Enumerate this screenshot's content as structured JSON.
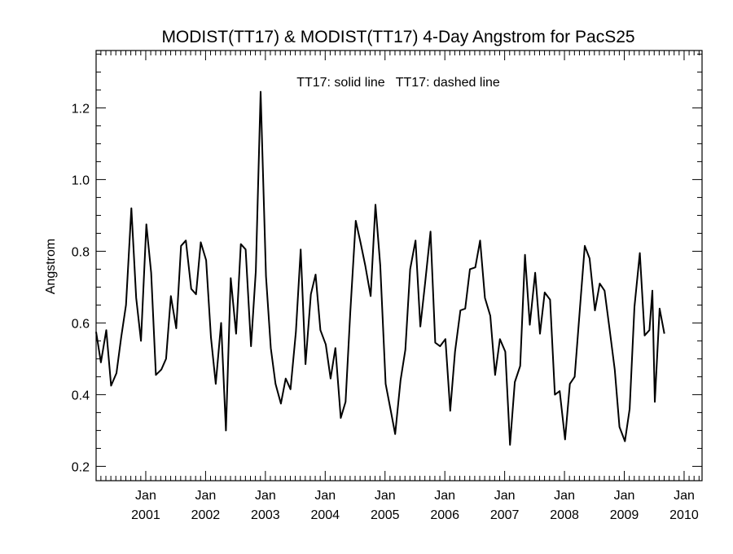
{
  "chart_data": {
    "type": "line",
    "title": "MODIST(TT17) & MODIST(TT17) 4-Day Angstrom for PacS25",
    "annotation": "TT17: solid line   TT17: dashed line",
    "ylabel": "Angstrom",
    "xlabel": "",
    "ylim": [
      0.16,
      1.36
    ],
    "xlim": [
      2000.17,
      2010.3
    ],
    "y_ticks": [
      {
        "value": 0.2,
        "label": "0.2"
      },
      {
        "value": 0.4,
        "label": "0.4"
      },
      {
        "value": 0.6,
        "label": "0.6"
      },
      {
        "value": 0.8,
        "label": "0.8"
      },
      {
        "value": 1.0,
        "label": "1.0"
      },
      {
        "value": 1.2,
        "label": "1.2"
      }
    ],
    "x_ticks": [
      {
        "value": 2001.0,
        "month": "Jan",
        "year": "2001"
      },
      {
        "value": 2002.0,
        "month": "Jan",
        "year": "2002"
      },
      {
        "value": 2003.0,
        "month": "Jan",
        "year": "2003"
      },
      {
        "value": 2004.0,
        "month": "Jan",
        "year": "2004"
      },
      {
        "value": 2005.0,
        "month": "Jan",
        "year": "2005"
      },
      {
        "value": 2006.0,
        "month": "Jan",
        "year": "2006"
      },
      {
        "value": 2007.0,
        "month": "Jan",
        "year": "2007"
      },
      {
        "value": 2008.0,
        "month": "Jan",
        "year": "2008"
      },
      {
        "value": 2009.0,
        "month": "Jan",
        "year": "2009"
      },
      {
        "value": 2010.0,
        "month": "Jan",
        "year": "2010"
      }
    ],
    "grid": false,
    "series": [
      {
        "style": "solid",
        "color": "#000000",
        "points": [
          [
            2000.17,
            0.575
          ],
          [
            2000.25,
            0.49
          ],
          [
            2000.34,
            0.58
          ],
          [
            2000.42,
            0.425
          ],
          [
            2000.51,
            0.46
          ],
          [
            2000.59,
            0.56
          ],
          [
            2000.67,
            0.65
          ],
          [
            2000.76,
            0.92
          ],
          [
            2000.84,
            0.67
          ],
          [
            2000.92,
            0.55
          ],
          [
            2001.01,
            0.875
          ],
          [
            2001.09,
            0.74
          ],
          [
            2001.17,
            0.455
          ],
          [
            2001.26,
            0.47
          ],
          [
            2001.34,
            0.5
          ],
          [
            2001.42,
            0.675
          ],
          [
            2001.51,
            0.585
          ],
          [
            2001.59,
            0.815
          ],
          [
            2001.67,
            0.83
          ],
          [
            2001.76,
            0.695
          ],
          [
            2001.84,
            0.68
          ],
          [
            2001.92,
            0.825
          ],
          [
            2002.01,
            0.775
          ],
          [
            2002.09,
            0.56
          ],
          [
            2002.17,
            0.43
          ],
          [
            2002.26,
            0.6
          ],
          [
            2002.34,
            0.3
          ],
          [
            2002.42,
            0.725
          ],
          [
            2002.51,
            0.57
          ],
          [
            2002.59,
            0.82
          ],
          [
            2002.67,
            0.805
          ],
          [
            2002.76,
            0.535
          ],
          [
            2002.84,
            0.745
          ],
          [
            2002.92,
            1.245
          ],
          [
            2003.01,
            0.73
          ],
          [
            2003.09,
            0.53
          ],
          [
            2003.17,
            0.43
          ],
          [
            2003.26,
            0.375
          ],
          [
            2003.34,
            0.445
          ],
          [
            2003.42,
            0.415
          ],
          [
            2003.51,
            0.575
          ],
          [
            2003.59,
            0.805
          ],
          [
            2003.67,
            0.485
          ],
          [
            2003.76,
            0.68
          ],
          [
            2003.84,
            0.735
          ],
          [
            2003.92,
            0.58
          ],
          [
            2004.01,
            0.54
          ],
          [
            2004.09,
            0.445
          ],
          [
            2004.17,
            0.53
          ],
          [
            2004.26,
            0.335
          ],
          [
            2004.34,
            0.38
          ],
          [
            2004.42,
            0.63
          ],
          [
            2004.51,
            0.885
          ],
          [
            2004.59,
            0.825
          ],
          [
            2004.67,
            0.76
          ],
          [
            2004.76,
            0.675
          ],
          [
            2004.84,
            0.93
          ],
          [
            2004.92,
            0.76
          ],
          [
            2005.01,
            0.43
          ],
          [
            2005.09,
            0.36
          ],
          [
            2005.17,
            0.29
          ],
          [
            2005.26,
            0.44
          ],
          [
            2005.34,
            0.525
          ],
          [
            2005.42,
            0.75
          ],
          [
            2005.51,
            0.83
          ],
          [
            2005.59,
            0.59
          ],
          [
            2005.67,
            0.71
          ],
          [
            2005.76,
            0.855
          ],
          [
            2005.84,
            0.545
          ],
          [
            2005.92,
            0.535
          ],
          [
            2006.01,
            0.555
          ],
          [
            2006.09,
            0.355
          ],
          [
            2006.17,
            0.52
          ],
          [
            2006.26,
            0.635
          ],
          [
            2006.34,
            0.64
          ],
          [
            2006.42,
            0.75
          ],
          [
            2006.51,
            0.755
          ],
          [
            2006.59,
            0.83
          ],
          [
            2006.67,
            0.67
          ],
          [
            2006.76,
            0.62
          ],
          [
            2006.84,
            0.455
          ],
          [
            2006.92,
            0.555
          ],
          [
            2007.01,
            0.52
          ],
          [
            2007.09,
            0.26
          ],
          [
            2007.17,
            0.435
          ],
          [
            2007.26,
            0.48
          ],
          [
            2007.34,
            0.79
          ],
          [
            2007.42,
            0.595
          ],
          [
            2007.51,
            0.74
          ],
          [
            2007.59,
            0.57
          ],
          [
            2007.67,
            0.685
          ],
          [
            2007.76,
            0.665
          ],
          [
            2007.84,
            0.4
          ],
          [
            2007.92,
            0.41
          ],
          [
            2008.01,
            0.275
          ],
          [
            2008.09,
            0.43
          ],
          [
            2008.17,
            0.45
          ],
          [
            2008.26,
            0.645
          ],
          [
            2008.34,
            0.815
          ],
          [
            2008.42,
            0.78
          ],
          [
            2008.51,
            0.635
          ],
          [
            2008.59,
            0.71
          ],
          [
            2008.67,
            0.69
          ],
          [
            2008.76,
            0.575
          ],
          [
            2008.84,
            0.47
          ],
          [
            2008.92,
            0.31
          ],
          [
            2009.01,
            0.27
          ],
          [
            2009.09,
            0.36
          ],
          [
            2009.17,
            0.645
          ],
          [
            2009.26,
            0.795
          ],
          [
            2009.34,
            0.565
          ],
          [
            2009.42,
            0.58
          ],
          [
            2009.47,
            0.69
          ],
          [
            2009.51,
            0.38
          ],
          [
            2009.59,
            0.64
          ],
          [
            2009.67,
            0.57
          ]
        ]
      }
    ]
  }
}
